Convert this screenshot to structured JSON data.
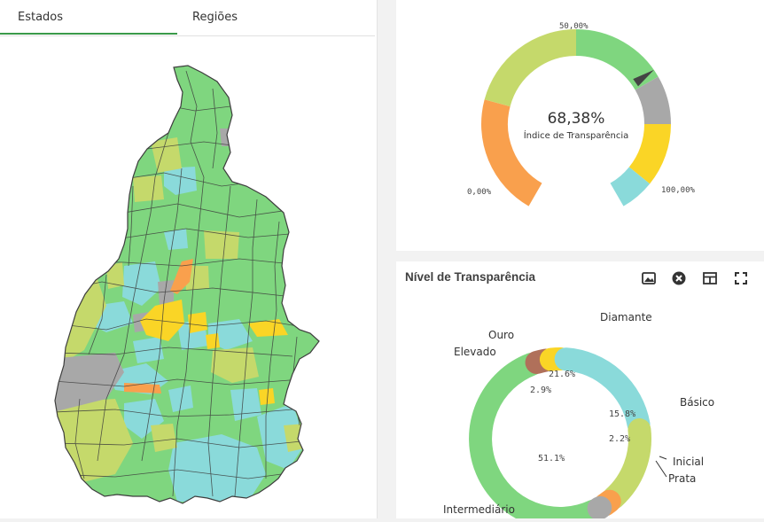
{
  "tabs": {
    "estados": "Estados",
    "regioes": "Regiões"
  },
  "gauge": {
    "value": 68.38,
    "value_text": "68,38%",
    "caption": "Índice de Transparência",
    "min_label": "0,00%",
    "mid_label": "50,00%",
    "max_label": "100,00%",
    "bands": [
      {
        "from": 0,
        "to": 25,
        "color": "#f9a04d"
      },
      {
        "from": 25,
        "to": 50,
        "color": "#c5d96b"
      },
      {
        "from": 50,
        "to": 70,
        "color": "#7fd67f"
      },
      {
        "from": 70,
        "to": 80,
        "color": "#a8a8a8"
      },
      {
        "from": 80,
        "to": 93,
        "color": "#fad526"
      },
      {
        "from": 93,
        "to": 100,
        "color": "#8adada"
      }
    ]
  },
  "donut": {
    "title": "Nível de Transparência",
    "tools": {
      "snapshot": "image-icon",
      "clear": "close-circle-icon",
      "table": "table-icon",
      "fullscreen": "expand-icon"
    },
    "segments": [
      {
        "label": "Intermediário",
        "value": 51.1,
        "value_text": "51.1%",
        "color": "#7fd67f"
      },
      {
        "label": "Elevado",
        "value": 2.9,
        "value_text": "2.9%",
        "color": "#b0705a"
      },
      {
        "label": "Ouro",
        "value": 2.9,
        "value_text": "",
        "color": "#fad526"
      },
      {
        "label": "Diamante",
        "value": 21.6,
        "value_text": "21.6%",
        "color": "#8adada"
      },
      {
        "label": "Básico",
        "value": 15.8,
        "value_text": "15.8%",
        "color": "#c5d96b"
      },
      {
        "label": "Inicial",
        "value": 2.2,
        "value_text": "2.2%",
        "color": "#f9a04d"
      },
      {
        "label": "Prata",
        "value": 1.4,
        "value_text": "",
        "color": "#a8a8a8"
      }
    ]
  },
  "colors": {
    "green": "#7fd67f",
    "cyan": "#8adada",
    "olive": "#c5d96b",
    "orange": "#f9a04d",
    "yellow": "#fad526",
    "gray": "#a8a8a8",
    "accent": "#3a9a4a"
  }
}
